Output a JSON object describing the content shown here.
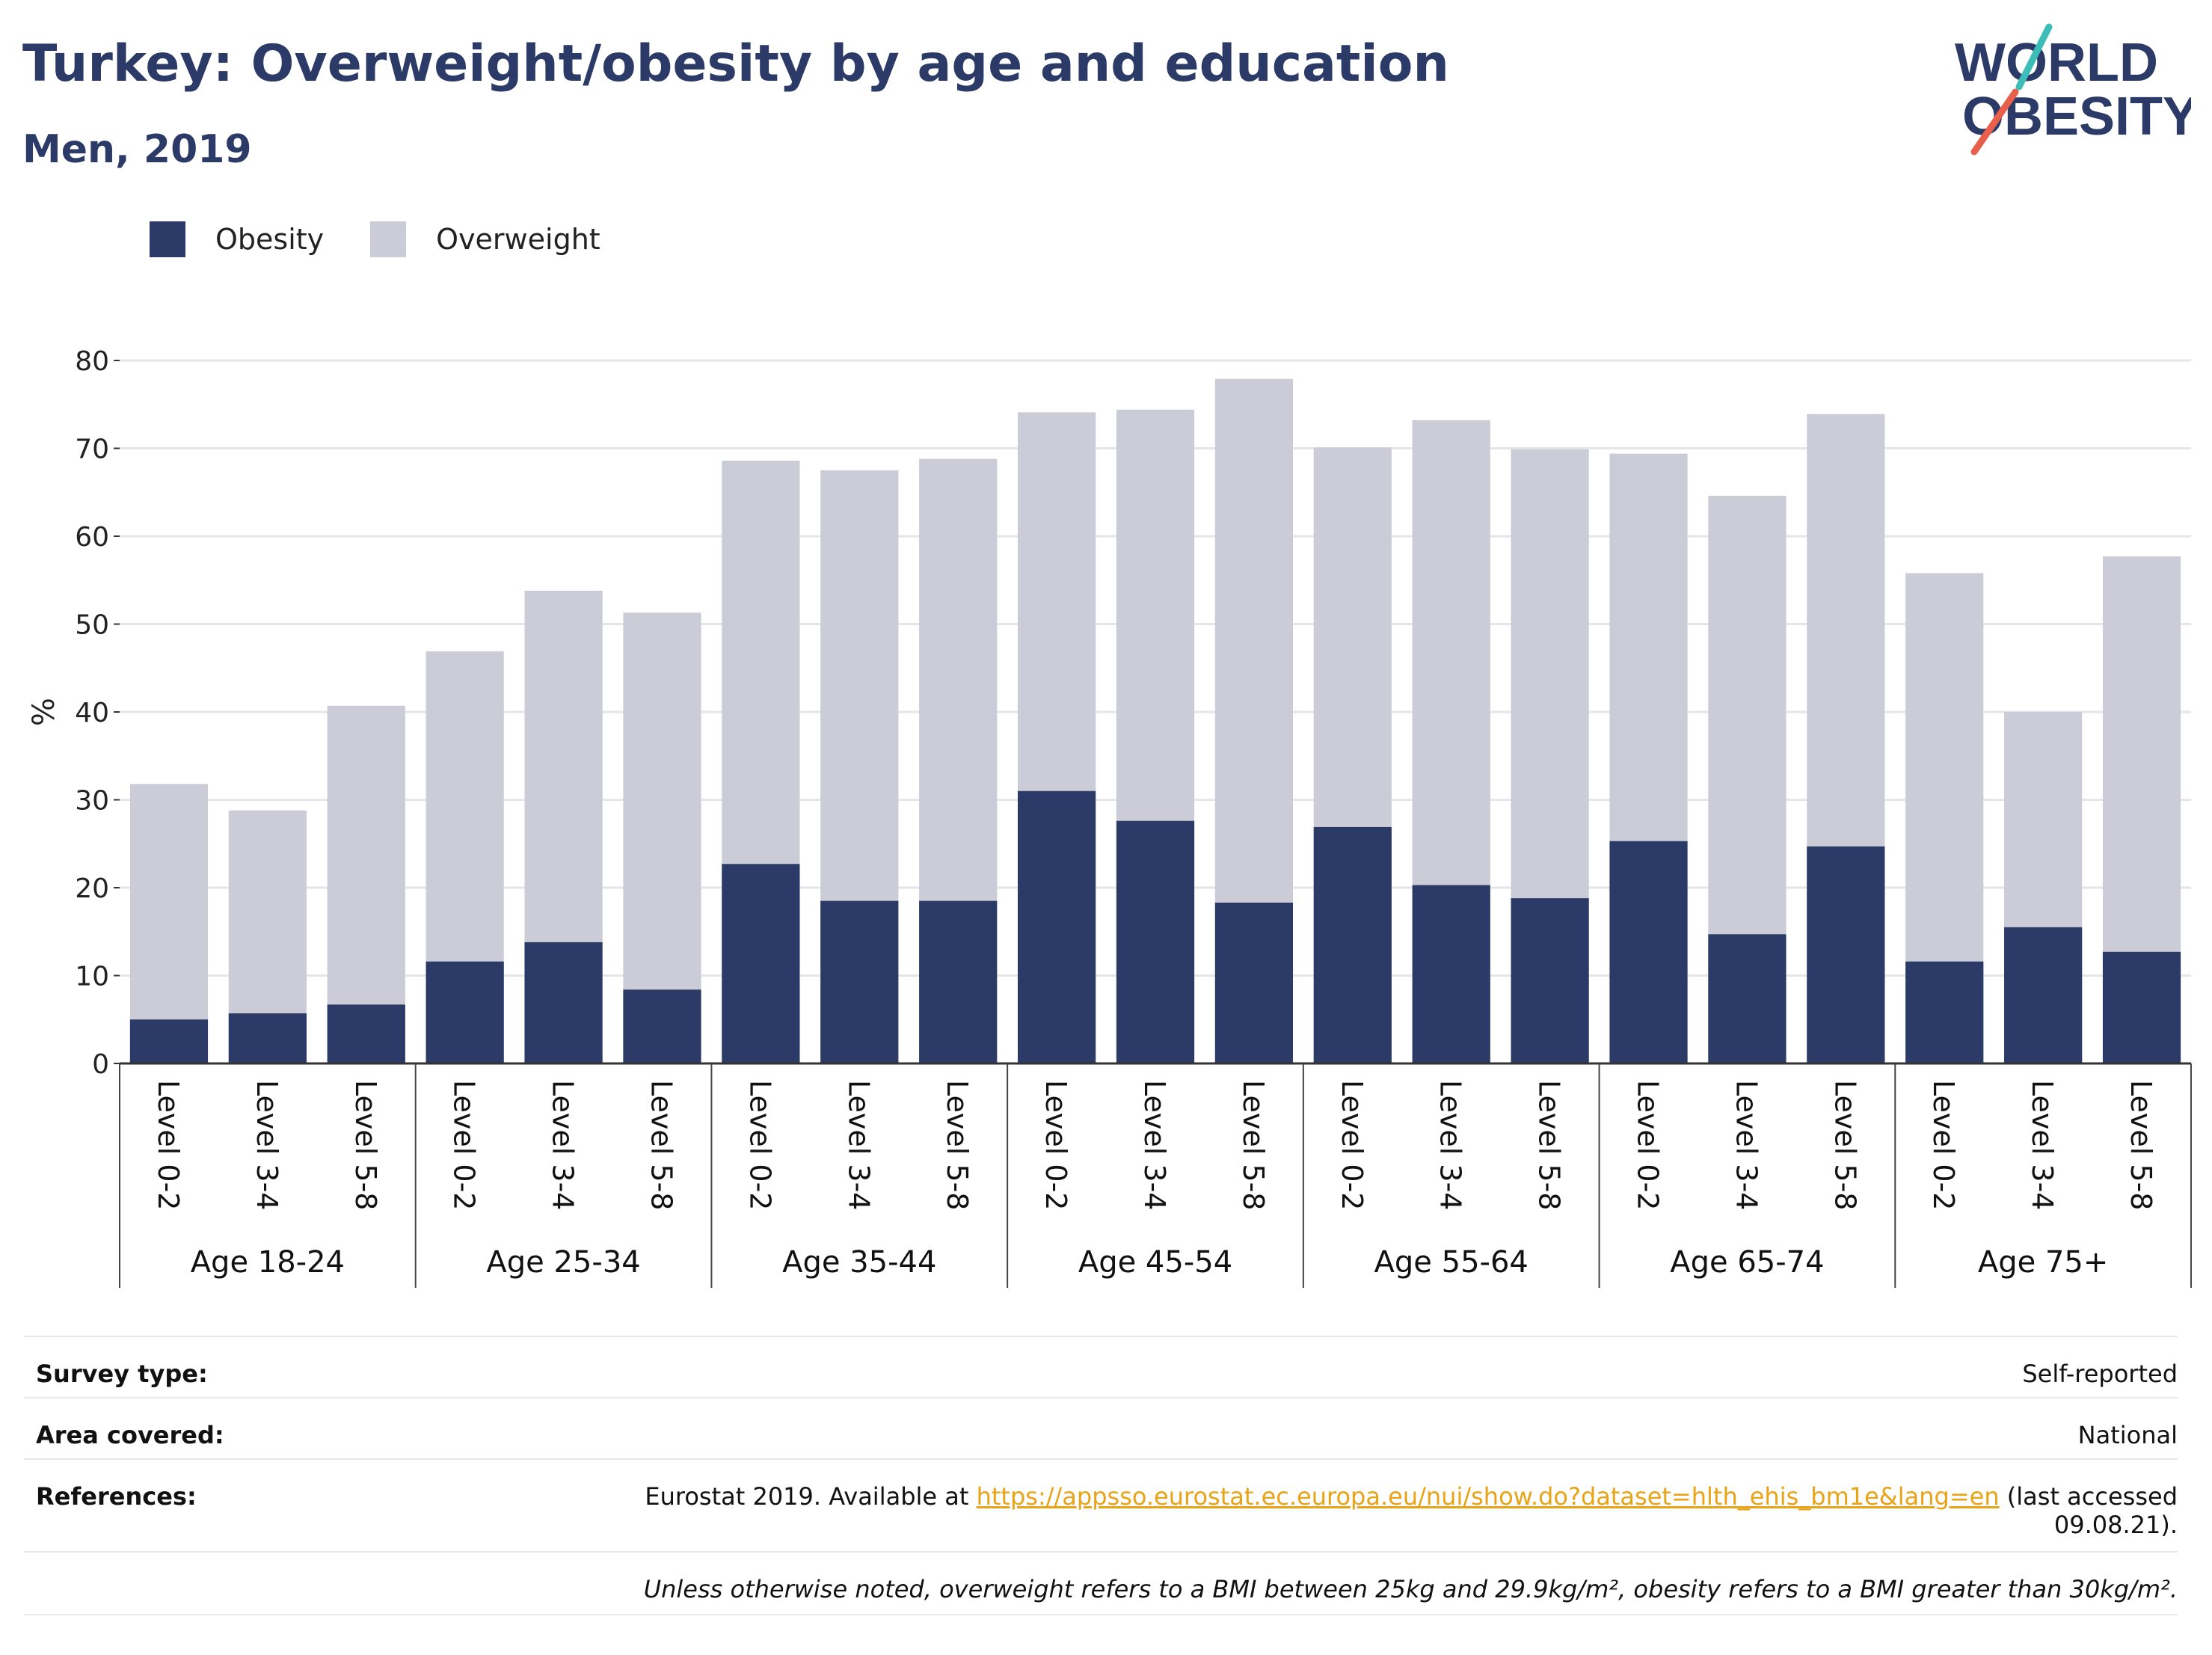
{
  "title": "Turkey: Overweight/obesity by age and education",
  "subtitle": "Men, 2019",
  "logo": {
    "line1": "WORLD",
    "line2": "OBESITY",
    "colors": [
      "#2b3a67",
      "#3dbdb8",
      "#e8604c"
    ]
  },
  "colors": {
    "obesity": "#2b3a67",
    "overweight": "#cbccd8",
    "grid": "#e6e6ea",
    "axis": "#333333"
  },
  "chart_data": {
    "type": "bar",
    "stacked": true,
    "title": "",
    "ylabel": "%",
    "ylim": [
      0,
      80
    ],
    "yticks": [
      0,
      10,
      20,
      30,
      40,
      50,
      60,
      70,
      80
    ],
    "grid": true,
    "legend_position": "top-left",
    "groups": [
      "Age 18-24",
      "Age 25-34",
      "Age 35-44",
      "Age 45-54",
      "Age 55-64",
      "Age 65-74",
      "Age 75+"
    ],
    "levels": [
      "Level 0-2",
      "Level 3-4",
      "Level 5-8"
    ],
    "categories": [
      "Level 0-2",
      "Level 3-4",
      "Level 5-8",
      "Level 0-2",
      "Level 3-4",
      "Level 5-8",
      "Level 0-2",
      "Level 3-4",
      "Level 5-8",
      "Level 0-2",
      "Level 3-4",
      "Level 5-8",
      "Level 0-2",
      "Level 3-4",
      "Level 5-8",
      "Level 0-2",
      "Level 3-4",
      "Level 5-8",
      "Level 0-2",
      "Level 3-4",
      "Level 5-8"
    ],
    "series": [
      {
        "name": "Obesity",
        "color": "#2b3a67",
        "values": [
          5.0,
          5.7,
          6.7,
          11.6,
          13.8,
          8.4,
          22.7,
          18.5,
          18.5,
          31.0,
          27.6,
          18.3,
          26.9,
          20.3,
          18.8,
          25.3,
          14.7,
          24.7,
          11.6,
          15.5,
          12.7
        ]
      },
      {
        "name": "Overweight",
        "color": "#cbccd8",
        "values": [
          26.8,
          23.1,
          34.0,
          35.3,
          40.0,
          42.9,
          45.9,
          49.0,
          50.3,
          43.1,
          46.8,
          59.6,
          43.2,
          52.9,
          51.1,
          44.1,
          49.9,
          49.2,
          44.2,
          24.5,
          45.0
        ]
      }
    ]
  },
  "meta": {
    "survey_type_label": "Survey type:",
    "survey_type_value": "Self-reported",
    "area_label": "Area covered:",
    "area_value": "National",
    "references_label": "References:",
    "references_prefix": "Eurostat 2019. Available at ",
    "references_link": "https://appsso.eurostat.ec.europa.eu/nui/show.do?dataset=hlth_ehis_bm1e&lang=en",
    "references_suffix": " (last accessed",
    "references_suffix2": "09.08.21).",
    "note": "Unless otherwise noted, overweight refers to a BMI between 25kg and 29.9kg/m², obesity refers to a BMI greater than 30kg/m²."
  }
}
